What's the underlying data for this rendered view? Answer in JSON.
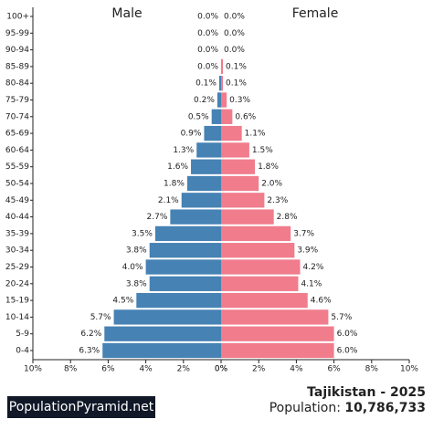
{
  "chart_data": {
    "type": "pyramid",
    "categories": [
      "100+",
      "95-99",
      "90-94",
      "85-89",
      "80-84",
      "75-79",
      "70-74",
      "65-69",
      "60-64",
      "55-59",
      "50-54",
      "45-49",
      "40-44",
      "35-39",
      "30-34",
      "25-29",
      "20-24",
      "15-19",
      "10-14",
      "5-9",
      "0-4"
    ],
    "series": [
      {
        "name": "Male",
        "color": "#4682b4",
        "values": [
          0.0,
          0.0,
          0.0,
          0.0,
          0.1,
          0.2,
          0.5,
          0.9,
          1.3,
          1.6,
          1.8,
          2.1,
          2.7,
          3.5,
          3.8,
          4.0,
          3.8,
          4.5,
          5.7,
          6.2,
          6.3
        ],
        "value_labels": [
          "0.0%",
          "0.0%",
          "0.0%",
          "0.0%",
          "0.1%",
          "0.2%",
          "0.5%",
          "0.9%",
          "1.3%",
          "1.6%",
          "1.8%",
          "2.1%",
          "2.7%",
          "3.5%",
          "3.8%",
          "4.0%",
          "3.8%",
          "4.5%",
          "5.7%",
          "6.2%",
          "6.3%"
        ]
      },
      {
        "name": "Female",
        "color": "#f07c8c",
        "values": [
          0.0,
          0.0,
          0.0,
          0.1,
          0.1,
          0.3,
          0.6,
          1.1,
          1.5,
          1.8,
          2.0,
          2.3,
          2.8,
          3.7,
          3.9,
          4.2,
          4.1,
          4.6,
          5.7,
          6.0,
          6.0
        ],
        "value_labels": [
          "0.0%",
          "0.0%",
          "0.0%",
          "0.1%",
          "0.1%",
          "0.3%",
          "0.6%",
          "1.1%",
          "1.5%",
          "1.8%",
          "2.0%",
          "2.3%",
          "2.8%",
          "3.7%",
          "3.9%",
          "4.2%",
          "4.1%",
          "4.6%",
          "5.7%",
          "6.0%",
          "6.0%"
        ]
      }
    ],
    "xlim": [
      0,
      10
    ],
    "xticks": [
      {
        "value": 0,
        "label": "0%"
      },
      {
        "value": 2,
        "label": "2%"
      },
      {
        "value": 4,
        "label": "4%"
      },
      {
        "value": 6,
        "label": "6%"
      },
      {
        "value": 8,
        "label": "8%"
      },
      {
        "value": 10,
        "label": "10%"
      }
    ],
    "country_year": "Tajikistan - 2025",
    "population_label": "Population:",
    "population": "10,786,733",
    "logo": "PopulationPyramid.net"
  }
}
